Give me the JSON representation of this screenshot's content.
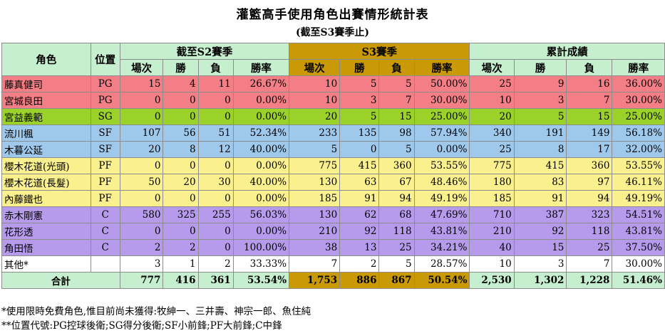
{
  "title": "灌籃高手使用角色出賽情形統計表",
  "subtitle": "(截至S3賽季止)",
  "headers": {
    "role": "角色",
    "position": "位置",
    "groups": [
      "截至S2賽季",
      "S3賽季",
      "累計成績"
    ],
    "sub": [
      "場次",
      "勝",
      "負",
      "勝率"
    ]
  },
  "rows": [
    {
      "name": "藤真健司",
      "pos": "PG",
      "color": "red",
      "s2": [
        "15",
        "4",
        "11",
        "26.67%"
      ],
      "s3": [
        "10",
        "5",
        "5",
        "50.00%"
      ],
      "total": [
        "25",
        "9",
        "16",
        "36.00%"
      ]
    },
    {
      "name": "宮城良田",
      "pos": "PG",
      "color": "red",
      "s2": [
        "0",
        "0",
        "0",
        "0.00%"
      ],
      "s3": [
        "10",
        "3",
        "7",
        "30.00%"
      ],
      "total": [
        "10",
        "3",
        "7",
        "30.00%"
      ]
    },
    {
      "name": "宮益義範",
      "pos": "SG",
      "color": "olive",
      "s2": [
        "0",
        "0",
        "0",
        "0.00%"
      ],
      "s3": [
        "20",
        "5",
        "15",
        "25.00%"
      ],
      "total": [
        "20",
        "5",
        "15",
        "25.00%"
      ]
    },
    {
      "name": "流川楓",
      "pos": "SF",
      "color": "blue",
      "s2": [
        "107",
        "56",
        "51",
        "52.34%"
      ],
      "s3": [
        "233",
        "135",
        "98",
        "57.94%"
      ],
      "total": [
        "340",
        "191",
        "149",
        "56.18%"
      ]
    },
    {
      "name": "木暮公延",
      "pos": "SF",
      "color": "blue",
      "s2": [
        "20",
        "8",
        "12",
        "40.00%"
      ],
      "s3": [
        "5",
        "0",
        "5",
        "0.00%"
      ],
      "total": [
        "25",
        "8",
        "17",
        "32.00%"
      ]
    },
    {
      "name": "櫻木花道(光頭)",
      "pos": "PF",
      "color": "yellow",
      "s2": [
        "0",
        "0",
        "0",
        "0.00%"
      ],
      "s3": [
        "775",
        "415",
        "360",
        "53.55%"
      ],
      "total": [
        "775",
        "415",
        "360",
        "53.55%"
      ]
    },
    {
      "name": "櫻木花道(長髮)",
      "pos": "PF",
      "color": "yellow",
      "s2": [
        "50",
        "20",
        "30",
        "40.00%"
      ],
      "s3": [
        "130",
        "63",
        "67",
        "48.46%"
      ],
      "total": [
        "180",
        "83",
        "97",
        "46.11%"
      ]
    },
    {
      "name": "內藤鐵也",
      "pos": "PF",
      "color": "yellow",
      "s2": [
        "0",
        "0",
        "0",
        "0.00%"
      ],
      "s3": [
        "185",
        "91",
        "94",
        "49.19%"
      ],
      "total": [
        "185",
        "91",
        "94",
        "49.19%"
      ]
    },
    {
      "name": "赤木剛憲",
      "pos": "C",
      "color": "purple",
      "s2": [
        "580",
        "325",
        "255",
        "56.03%"
      ],
      "s3": [
        "130",
        "62",
        "68",
        "47.69%"
      ],
      "total": [
        "710",
        "387",
        "323",
        "54.51%"
      ]
    },
    {
      "name": "花形透",
      "pos": "C",
      "color": "purple",
      "s2": [
        "0",
        "0",
        "0",
        "0.00%"
      ],
      "s3": [
        "210",
        "92",
        "118",
        "43.81%"
      ],
      "total": [
        "210",
        "92",
        "118",
        "43.81%"
      ]
    },
    {
      "name": "角田悟",
      "pos": "C",
      "color": "purple",
      "s2": [
        "2",
        "2",
        "0",
        "100.00%"
      ],
      "s3": [
        "38",
        "13",
        "25",
        "34.21%"
      ],
      "total": [
        "40",
        "15",
        "25",
        "37.50%"
      ]
    },
    {
      "name": "其他*",
      "pos": "",
      "color": "white",
      "s2": [
        "3",
        "1",
        "2",
        "33.33%"
      ],
      "s3": [
        "7",
        "2",
        "5",
        "28.57%"
      ],
      "total": [
        "10",
        "3",
        "7",
        "30.00%"
      ]
    }
  ],
  "totals": {
    "label": "合計",
    "s2": [
      "777",
      "416",
      "361",
      "53.54%"
    ],
    "s3": [
      "1,753",
      "886",
      "867",
      "50.54%"
    ],
    "total": [
      "2,530",
      "1,302",
      "1,228",
      "51.46%"
    ]
  },
  "notes": [
    "*使用限時免費角色,惟目前尚未獲得:牧紳一、三井壽、神宗一郎、魚住純",
    "**位置代號:PG控球後衛;SG得分後衛;SF小前鋒;PF大前鋒;C中鋒"
  ],
  "colors": {
    "red": "#f47e85",
    "olive": "#9bd22a",
    "blue": "#9fc9ec",
    "yellow": "#fbf08e",
    "purple": "#b69bec",
    "white": "#ffffff",
    "header_green": "#c6efcf",
    "header_gold": "#c99a06"
  }
}
